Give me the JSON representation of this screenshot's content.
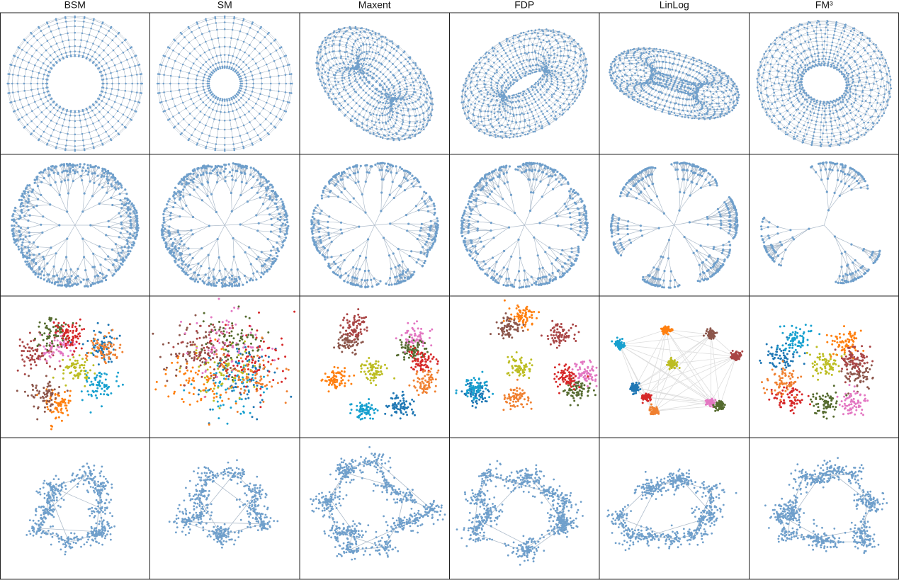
{
  "header": {
    "columns": [
      "BSM",
      "SM",
      "Maxent",
      "FDP",
      "LinLog",
      "FM³"
    ]
  }
}
